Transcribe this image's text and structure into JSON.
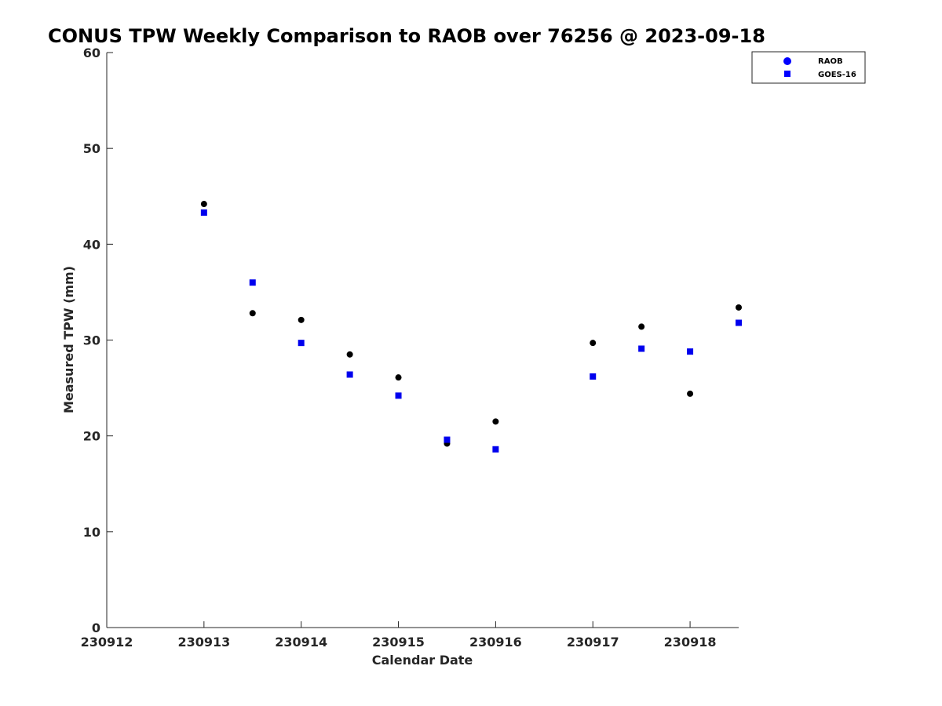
{
  "chart_data": {
    "type": "scatter",
    "title": "CONUS TPW Weekly Comparison to RAOB over 76256 @ 2023-09-18",
    "xlabel": "Calendar Date",
    "ylabel": "Measured TPW (mm)",
    "xlim": [
      0,
      6.5
    ],
    "ylim": [
      0,
      60
    ],
    "x_ticks": [
      {
        "value": 0,
        "label": "230912"
      },
      {
        "value": 1,
        "label": "230913"
      },
      {
        "value": 2,
        "label": "230914"
      },
      {
        "value": 3,
        "label": "230915"
      },
      {
        "value": 4,
        "label": "230916"
      },
      {
        "value": 5,
        "label": "230917"
      },
      {
        "value": 6,
        "label": "230918"
      }
    ],
    "y_ticks": [
      0,
      10,
      20,
      30,
      40,
      50,
      60
    ],
    "legend_position": "top-right",
    "series": [
      {
        "name": "RAOB",
        "marker": "circle",
        "color": "#000000",
        "legend_color": "#0000ff",
        "points": [
          {
            "x": 1.0,
            "y": 44.2
          },
          {
            "x": 1.5,
            "y": 32.8
          },
          {
            "x": 2.0,
            "y": 32.1
          },
          {
            "x": 2.5,
            "y": 28.5
          },
          {
            "x": 3.0,
            "y": 26.1
          },
          {
            "x": 3.5,
            "y": 19.2
          },
          {
            "x": 4.0,
            "y": 21.5
          },
          {
            "x": 5.0,
            "y": 29.7
          },
          {
            "x": 5.5,
            "y": 31.4
          },
          {
            "x": 6.0,
            "y": 24.4
          },
          {
            "x": 6.5,
            "y": 33.4
          }
        ]
      },
      {
        "name": "GOES-16",
        "marker": "square",
        "color": "#0000ee",
        "legend_color": "#0000ff",
        "points": [
          {
            "x": 1.0,
            "y": 43.3
          },
          {
            "x": 1.5,
            "y": 36.0
          },
          {
            "x": 2.0,
            "y": 29.7
          },
          {
            "x": 2.5,
            "y": 26.4
          },
          {
            "x": 3.0,
            "y": 24.2
          },
          {
            "x": 3.5,
            "y": 19.6
          },
          {
            "x": 4.0,
            "y": 18.6
          },
          {
            "x": 5.0,
            "y": 26.2
          },
          {
            "x": 5.5,
            "y": 29.1
          },
          {
            "x": 6.0,
            "y": 28.8
          },
          {
            "x": 6.5,
            "y": 31.8
          }
        ]
      }
    ]
  }
}
